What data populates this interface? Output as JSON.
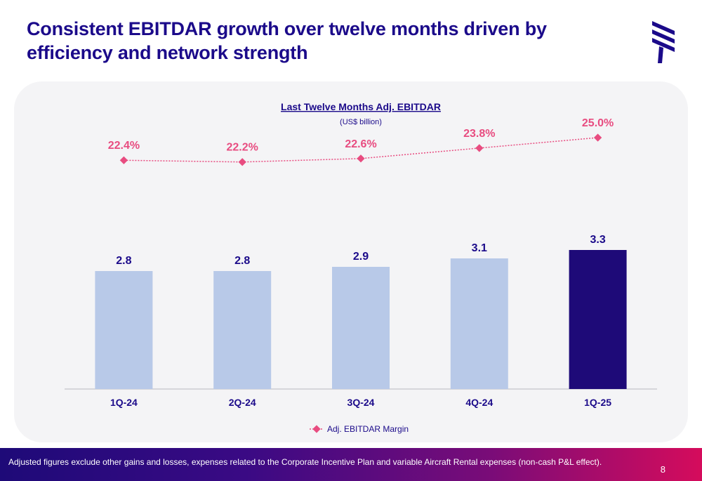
{
  "slide": {
    "title": "Consistent EBITDAR growth over twelve months driven by efficiency and network strength",
    "footnote": "Adjusted figures exclude other gains and losses, expenses related to the Corporate Incentive Plan and variable Aircraft Rental expenses (non-cash P&L effect).",
    "page_number": "8"
  },
  "colors": {
    "title": "#1b0a8a",
    "bar": "#b8c9e8",
    "bar_highlight": "#1e0a78",
    "line": "#e84c80",
    "bar_label": "#1b0a8a"
  },
  "chart_data": {
    "type": "bar",
    "title": "Last Twelve Months Adj. EBITDAR",
    "subtitle": "(US$ billion)",
    "categories": [
      "1Q-24",
      "2Q-24",
      "3Q-24",
      "4Q-24",
      "1Q-25"
    ],
    "series": [
      {
        "type": "bar",
        "values": [
          2.8,
          2.8,
          2.9,
          3.1,
          3.3
        ],
        "labels": [
          "2.8",
          "2.8",
          "2.9",
          "3.1",
          "3.3"
        ],
        "highlight_index": 4
      },
      {
        "type": "line",
        "name": "Adj. EBITDAR Margin",
        "values": [
          22.4,
          22.2,
          22.6,
          23.8,
          25.0
        ],
        "labels": [
          "22.4%",
          "22.2%",
          "22.6%",
          "23.8%",
          "25.0%"
        ],
        "style": "dotted",
        "marker": "diamond"
      }
    ],
    "legend": {
      "position": "bottom"
    },
    "grid": false
  }
}
